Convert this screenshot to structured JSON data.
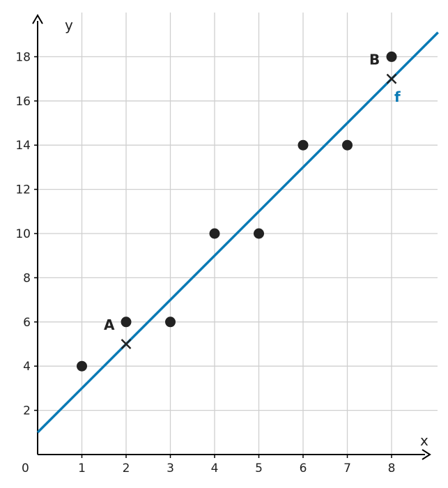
{
  "chart_data": {
    "type": "scatter",
    "xlabel": "x",
    "ylabel": "y",
    "origin_label": "0",
    "xlim": [
      0,
      9
    ],
    "ylim": [
      0,
      20
    ],
    "x_ticks": [
      1,
      2,
      3,
      4,
      5,
      6,
      7,
      8
    ],
    "y_ticks": [
      2,
      4,
      6,
      8,
      10,
      12,
      14,
      16,
      18
    ],
    "grid": true,
    "points": [
      {
        "x": 1,
        "y": 4
      },
      {
        "x": 2,
        "y": 6
      },
      {
        "x": 3,
        "y": 6
      },
      {
        "x": 4,
        "y": 10
      },
      {
        "x": 5,
        "y": 10
      },
      {
        "x": 6,
        "y": 14
      },
      {
        "x": 7,
        "y": 14
      },
      {
        "x": 8,
        "y": 18
      }
    ],
    "line": {
      "name": "f",
      "slope": 2,
      "intercept": 1,
      "color": "#0a7ab5"
    },
    "line_points": [
      {
        "label": "A",
        "x": 2,
        "y": 5
      },
      {
        "label": "B",
        "x": 8,
        "y": 17
      }
    ],
    "colors": {
      "points": "#222222",
      "line": "#0a7ab5",
      "grid": "#cfcfcf"
    }
  }
}
